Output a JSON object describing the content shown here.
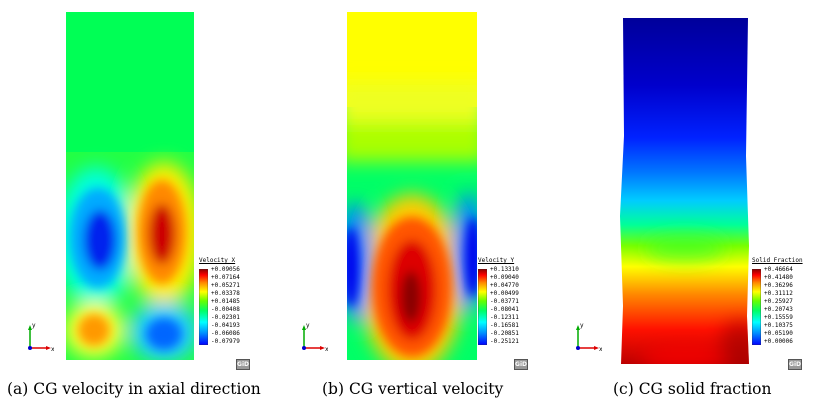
{
  "panels": [
    {
      "id": "a",
      "legend_title": "Velocity X",
      "legend_values": [
        "+0.09056",
        "+0.07164",
        "+0.05271",
        "+0.03378",
        "+0.01485",
        "-0.00408",
        "-0.02301",
        "-0.04193",
        "-0.06086",
        "-0.07979"
      ],
      "axis_y": "y",
      "axis_x": "x",
      "logo": "GiD",
      "caption": "(a)  CG velocity in axial direction"
    },
    {
      "id": "b",
      "legend_title": "Velocity Y",
      "legend_values": [
        "+0.13310",
        "+0.09040",
        "+0.04770",
        "+0.00499",
        "-0.03771",
        "-0.08041",
        "-0.12311",
        "-0.16581",
        "-0.20851",
        "-0.25121"
      ],
      "axis_y": "y",
      "axis_x": "x",
      "logo": "GiD",
      "caption": "(b)  CG vertical velocity"
    },
    {
      "id": "c",
      "legend_title": "Solid_Fraction",
      "legend_values": [
        "+0.46664",
        "+0.41480",
        "+0.36296",
        "+0.31112",
        "+0.25927",
        "+0.20743",
        "+0.15559",
        "+0.10375",
        "+0.05190",
        "+0.00006"
      ],
      "axis_y": "y",
      "axis_x": "x",
      "logo": "GiD",
      "caption": "(c)  CG solid fraction"
    }
  ],
  "colormap": [
    "#0000ff",
    "#0088ff",
    "#00ffff",
    "#00ff66",
    "#66ff00",
    "#ffff00",
    "#ff8800",
    "#ff0000",
    "#880000"
  ]
}
